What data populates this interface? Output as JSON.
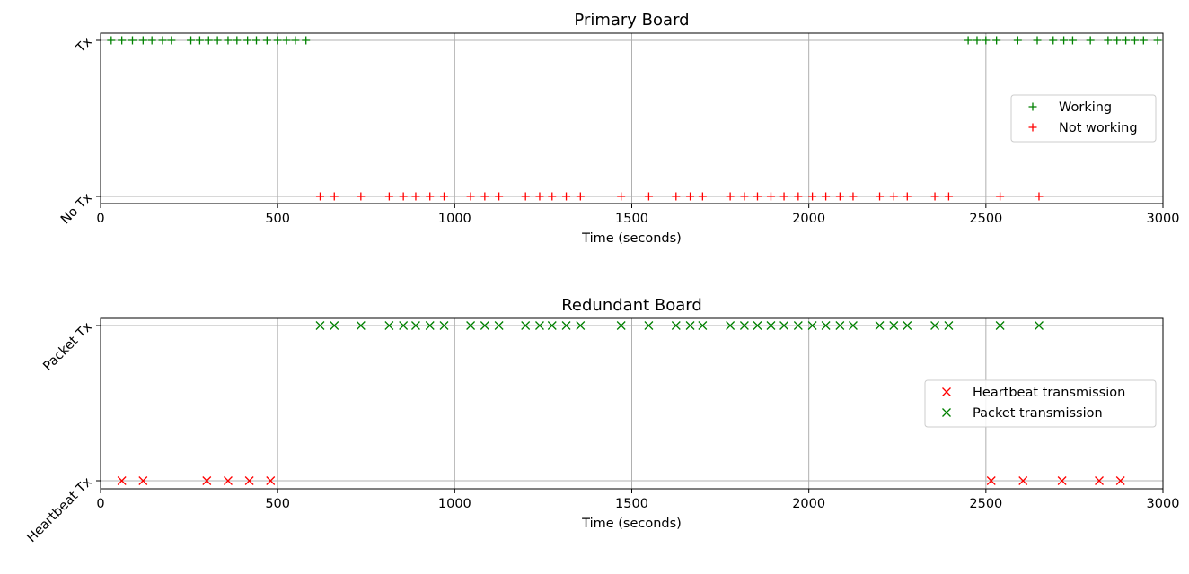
{
  "chart_data": [
    {
      "type": "scatter",
      "title": "Primary Board",
      "xlabel": "Time (seconds)",
      "ylabel": "",
      "xlim": [
        0,
        3000
      ],
      "xticks": [
        0,
        500,
        1000,
        1500,
        2000,
        2500,
        3000
      ],
      "yticks": [
        "No Tx",
        "Tx"
      ],
      "grid": true,
      "legend_position": "center-right",
      "series": [
        {
          "name": "Working",
          "color": "#008000",
          "marker": "plus",
          "y": "Tx",
          "x": [
            30,
            60,
            90,
            120,
            145,
            175,
            200,
            255,
            280,
            305,
            330,
            360,
            385,
            415,
            440,
            470,
            500,
            525,
            550,
            580,
            2450,
            2475,
            2500,
            2530,
            2590,
            2645,
            2690,
            2720,
            2745,
            2795,
            2845,
            2870,
            2895,
            2920,
            2945,
            2985
          ]
        },
        {
          "name": "Not working",
          "color": "#ff0000",
          "marker": "plus",
          "y": "No Tx",
          "x": [
            620,
            660,
            735,
            815,
            855,
            890,
            930,
            970,
            1045,
            1085,
            1125,
            1200,
            1240,
            1275,
            1315,
            1355,
            1470,
            1548,
            1625,
            1665,
            1700,
            1778,
            1818,
            1855,
            1893,
            1930,
            1970,
            2010,
            2048,
            2088,
            2125,
            2200,
            2240,
            2278,
            2356,
            2395,
            2540,
            2650
          ]
        }
      ]
    },
    {
      "type": "scatter",
      "title": "Redundant Board",
      "xlabel": "Time (seconds)",
      "ylabel": "",
      "xlim": [
        0,
        3000
      ],
      "xticks": [
        0,
        500,
        1000,
        1500,
        2000,
        2500,
        3000
      ],
      "yticks": [
        "Heartbeat Tx",
        "Packet Tx"
      ],
      "grid": true,
      "legend_position": "center-right",
      "series": [
        {
          "name": "Heartbeat transmission",
          "color": "#ff0000",
          "marker": "x",
          "y": "Heartbeat Tx",
          "x": [
            60,
            120,
            300,
            360,
            420,
            480,
            2515,
            2605,
            2715,
            2820,
            2880
          ]
        },
        {
          "name": "Packet transmission",
          "color": "#008000",
          "marker": "x",
          "y": "Packet Tx",
          "x": [
            620,
            660,
            735,
            815,
            855,
            890,
            930,
            970,
            1045,
            1085,
            1125,
            1200,
            1240,
            1275,
            1315,
            1355,
            1470,
            1548,
            1625,
            1665,
            1700,
            1778,
            1818,
            1855,
            1893,
            1930,
            1970,
            2010,
            2048,
            2088,
            2125,
            2200,
            2240,
            2278,
            2356,
            2395,
            2540,
            2650
          ]
        }
      ]
    }
  ]
}
